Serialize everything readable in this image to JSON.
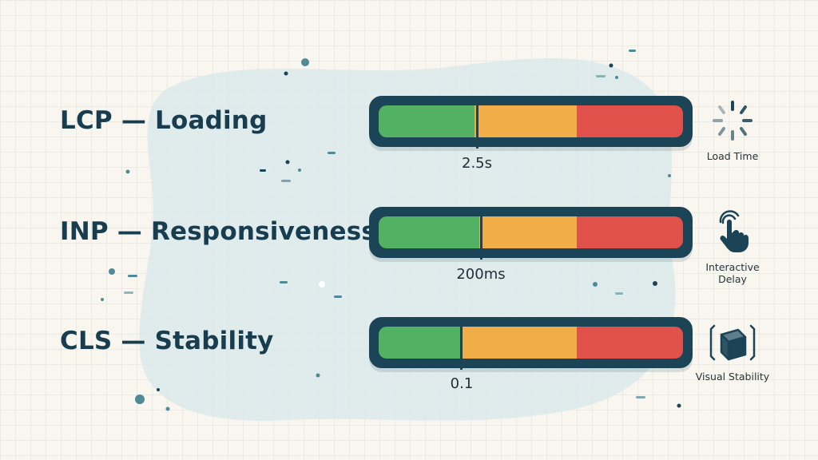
{
  "metrics": [
    {
      "title": "LCP — Loading",
      "threshold_label": "2.5s",
      "caption": "Load Time",
      "icon": "loading-spinner-icon",
      "segments": [
        0.315,
        0.335,
        0.35
      ]
    },
    {
      "title": "INP — Responsiveness",
      "threshold_label": "200ms",
      "caption": "Interactive Delay",
      "icon": "tap-hand-icon",
      "segments": [
        0.33,
        0.32,
        0.35
      ]
    },
    {
      "title": "CLS — Stability",
      "threshold_label": "0.1",
      "caption": "Visual Stability",
      "icon": "cube-icon",
      "segments": [
        0.275,
        0.375,
        0.35
      ]
    }
  ],
  "colors": {
    "good": "#52b162",
    "needs_improvement": "#f1ad47",
    "poor": "#e1514b",
    "outline": "#1b4557",
    "text": "#173d4f"
  }
}
